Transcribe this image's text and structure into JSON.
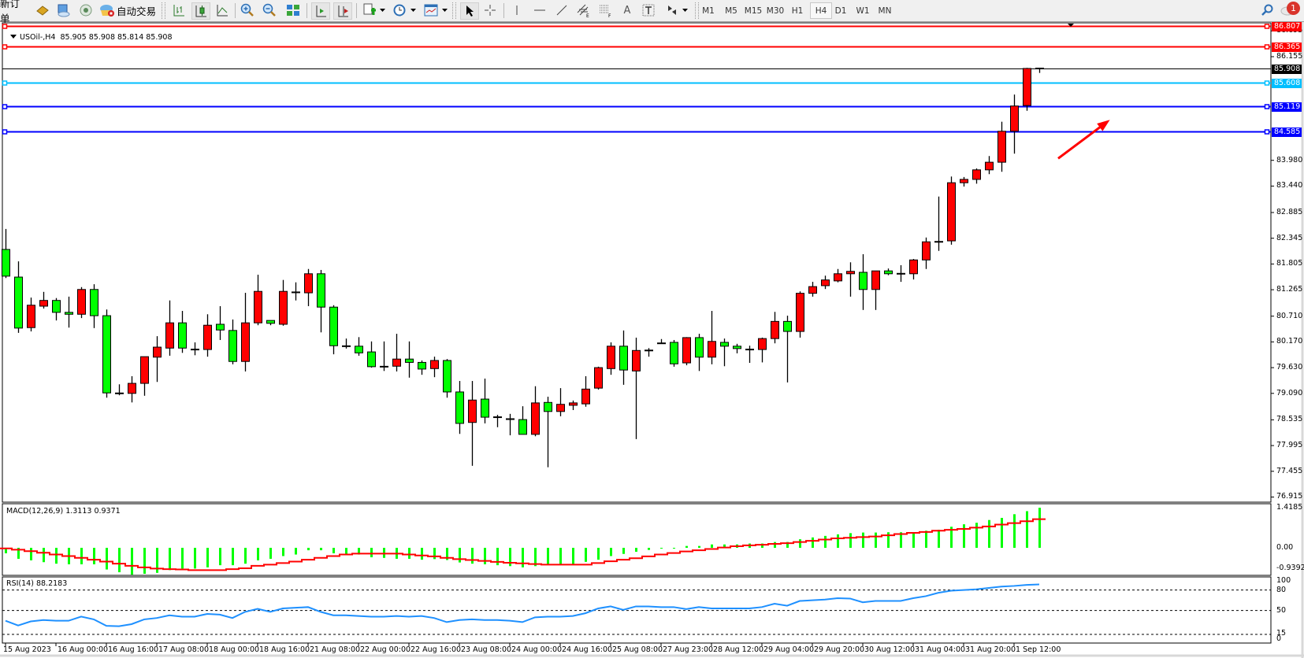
{
  "toolbar": {
    "new_order": "新订单",
    "auto_trading": "自动交易",
    "timeframes": [
      "M1",
      "M5",
      "M15",
      "M30",
      "H1",
      "H4",
      "D1",
      "W1",
      "MN"
    ],
    "active_timeframe": "H4",
    "notification_count": "1"
  },
  "chart": {
    "symbol": "USOil-,H4",
    "ohlc_readout": "85.905 85.908 85.814 85.908"
  },
  "chart_data": {
    "type": "candlestick",
    "timeframe": "H4",
    "up_color": "#ff0000",
    "down_color": "#00ff00",
    "ylim": [
      76.915,
      86.807
    ],
    "price_ticks": [
      "86.695",
      "86.155",
      "83.980",
      "83.440",
      "82.885",
      "82.345",
      "81.805",
      "81.265",
      "80.710",
      "80.170",
      "79.630",
      "79.090",
      "78.535",
      "77.995",
      "77.455",
      "76.915"
    ],
    "time_labels": [
      {
        "bar": 0,
        "label": "15 Aug 2023"
      },
      {
        "bar": 4,
        "label": "16 Aug 00:00"
      },
      {
        "bar": 8,
        "label": "16 Aug 16:00"
      },
      {
        "bar": 12,
        "label": "17 Aug 08:00"
      },
      {
        "bar": 16,
        "label": "18 Aug 00:00"
      },
      {
        "bar": 20,
        "label": "18 Aug 16:00"
      },
      {
        "bar": 24,
        "label": "21 Aug 08:00"
      },
      {
        "bar": 28,
        "label": "22 Aug 00:00"
      },
      {
        "bar": 32,
        "label": "22 Aug 16:00"
      },
      {
        "bar": 36,
        "label": "23 Aug 08:00"
      },
      {
        "bar": 40,
        "label": "24 Aug 00:00"
      },
      {
        "bar": 44,
        "label": "24 Aug 16:00"
      },
      {
        "bar": 48,
        "label": "25 Aug 08:00"
      },
      {
        "bar": 52,
        "label": "27 Aug 23:00"
      },
      {
        "bar": 56,
        "label": "28 Aug 12:00"
      },
      {
        "bar": 60,
        "label": "29 Aug 04:00"
      },
      {
        "bar": 64,
        "label": "29 Aug 20:00"
      },
      {
        "bar": 68,
        "label": "30 Aug 12:00"
      },
      {
        "bar": 72,
        "label": "31 Aug 04:00"
      },
      {
        "bar": 76,
        "label": "31 Aug 20:00"
      },
      {
        "bar": 80,
        "label": "1 Sep 12:00"
      }
    ],
    "ohlc": [
      [
        82.11,
        82.54,
        81.51,
        81.55
      ],
      [
        81.53,
        81.86,
        80.36,
        80.46
      ],
      [
        80.47,
        81.1,
        80.39,
        80.94
      ],
      [
        80.92,
        81.22,
        80.87,
        81.04
      ],
      [
        81.04,
        81.09,
        80.62,
        80.79
      ],
      [
        80.79,
        81.12,
        80.47,
        80.75
      ],
      [
        80.75,
        81.32,
        80.67,
        81.27
      ],
      [
        81.27,
        81.38,
        80.46,
        80.72
      ],
      [
        80.72,
        80.85,
        79.0,
        79.1
      ],
      [
        79.09,
        79.28,
        79.05,
        79.09
      ],
      [
        79.09,
        79.45,
        78.9,
        79.3
      ],
      [
        79.3,
        79.86,
        79.04,
        79.86
      ],
      [
        79.85,
        80.29,
        79.33,
        80.06
      ],
      [
        80.04,
        81.04,
        79.88,
        80.57
      ],
      [
        80.57,
        80.82,
        79.94,
        80.04
      ],
      [
        80.01,
        80.16,
        79.89,
        80.01
      ],
      [
        80.01,
        80.75,
        79.86,
        80.52
      ],
      [
        80.54,
        80.92,
        80.21,
        80.42
      ],
      [
        80.41,
        80.64,
        79.7,
        79.76
      ],
      [
        79.76,
        81.2,
        79.55,
        80.57
      ],
      [
        80.57,
        81.58,
        80.52,
        81.23
      ],
      [
        80.62,
        80.62,
        80.52,
        80.56
      ],
      [
        80.54,
        81.47,
        80.51,
        81.23
      ],
      [
        81.21,
        81.42,
        81.04,
        81.21
      ],
      [
        81.2,
        81.7,
        80.92,
        81.6
      ],
      [
        81.6,
        81.68,
        80.37,
        80.9
      ],
      [
        80.9,
        80.94,
        79.91,
        80.09
      ],
      [
        80.08,
        80.24,
        80.03,
        80.08
      ],
      [
        80.08,
        80.27,
        79.88,
        79.94
      ],
      [
        79.96,
        80.18,
        79.63,
        79.65
      ],
      [
        79.65,
        80.18,
        79.56,
        79.65
      ],
      [
        79.66,
        80.34,
        79.55,
        79.81
      ],
      [
        79.81,
        80.18,
        79.42,
        79.74
      ],
      [
        79.74,
        79.78,
        79.48,
        79.6
      ],
      [
        79.61,
        79.86,
        79.43,
        79.78
      ],
      [
        79.78,
        79.81,
        79.0,
        79.12
      ],
      [
        79.12,
        79.35,
        78.24,
        78.46
      ],
      [
        78.48,
        79.35,
        77.57,
        78.95
      ],
      [
        78.97,
        79.4,
        78.46,
        78.59
      ],
      [
        78.59,
        78.64,
        78.38,
        78.59
      ],
      [
        78.56,
        78.66,
        78.21,
        78.54
      ],
      [
        78.54,
        78.82,
        78.23,
        78.23
      ],
      [
        78.23,
        79.24,
        78.19,
        78.89
      ],
      [
        78.9,
        79.02,
        77.54,
        78.71
      ],
      [
        78.71,
        79.2,
        78.61,
        78.86
      ],
      [
        78.84,
        78.94,
        78.74,
        78.89
      ],
      [
        78.87,
        79.45,
        78.81,
        79.18
      ],
      [
        79.2,
        79.65,
        79.17,
        79.63
      ],
      [
        79.61,
        80.16,
        79.48,
        80.08
      ],
      [
        80.08,
        80.41,
        79.27,
        79.58
      ],
      [
        79.56,
        80.26,
        78.13,
        79.99
      ],
      [
        79.99,
        80.04,
        79.86,
        79.99
      ],
      [
        80.14,
        80.23,
        80.13,
        80.14
      ],
      [
        80.16,
        80.21,
        79.65,
        79.71
      ],
      [
        79.73,
        80.27,
        79.68,
        80.26
      ],
      [
        80.26,
        80.34,
        79.56,
        79.85
      ],
      [
        79.85,
        80.82,
        79.7,
        80.18
      ],
      [
        80.16,
        80.24,
        79.66,
        80.08
      ],
      [
        80.08,
        80.13,
        79.93,
        80.03
      ],
      [
        80.01,
        80.09,
        79.73,
        80.01
      ],
      [
        80.01,
        80.26,
        79.74,
        80.24
      ],
      [
        80.24,
        80.8,
        80.14,
        80.6
      ],
      [
        80.6,
        80.72,
        79.32,
        80.39
      ],
      [
        80.39,
        81.23,
        80.26,
        81.19
      ],
      [
        81.19,
        81.43,
        81.12,
        81.33
      ],
      [
        81.35,
        81.56,
        81.28,
        81.47
      ],
      [
        81.45,
        81.7,
        81.42,
        81.6
      ],
      [
        81.6,
        81.84,
        81.12,
        81.65
      ],
      [
        81.63,
        82.01,
        80.84,
        81.27
      ],
      [
        81.27,
        81.66,
        80.84,
        81.66
      ],
      [
        81.66,
        81.71,
        81.57,
        81.6
      ],
      [
        81.6,
        81.78,
        81.43,
        81.6
      ],
      [
        81.6,
        81.91,
        81.48,
        81.89
      ],
      [
        81.89,
        82.36,
        81.7,
        82.27
      ],
      [
        82.27,
        83.22,
        82.08,
        82.27
      ],
      [
        82.29,
        83.64,
        82.21,
        83.51
      ],
      [
        83.51,
        83.63,
        83.43,
        83.58
      ],
      [
        83.58,
        83.81,
        83.49,
        83.78
      ],
      [
        83.78,
        84.07,
        83.69,
        83.94
      ],
      [
        83.94,
        84.79,
        83.74,
        84.59
      ],
      [
        84.59,
        85.36,
        84.12,
        85.12
      ],
      [
        85.13,
        85.92,
        85.02,
        85.908
      ],
      [
        85.905,
        85.908,
        85.814,
        85.908
      ]
    ],
    "levels": [
      {
        "price": "86.807",
        "color": "#ff0000",
        "text_color": "#ffffff"
      },
      {
        "price": "86.365",
        "color": "#ff0000",
        "text_color": "#ffffff"
      },
      {
        "price": "85.908",
        "color": "#000000",
        "text_color": "#ffffff",
        "kind": "bid"
      },
      {
        "price": "85.608",
        "color": "#00bfff",
        "text_color": "#ffffff"
      },
      {
        "price": "85.119",
        "color": "#0000ff",
        "text_color": "#ffffff"
      },
      {
        "price": "84.585",
        "color": "#0000ff",
        "text_color": "#ffffff"
      }
    ],
    "arrow": {
      "color": "#ff0000",
      "from": {
        "bar": 83.5,
        "price": 84.02
      },
      "to": {
        "bar": 87.6,
        "price": 84.83
      }
    },
    "macd": {
      "label": "MACD(12,26,9)",
      "values_readout": "1.3113 0.9371",
      "ylim": [
        -0.9392,
        1.4185
      ],
      "ticks": [
        "1.4185",
        "0.00",
        "-0.9392"
      ],
      "hist_color": "#00ff00",
      "signal_color": "#ff0000",
      "main": [
        -0.18,
        -0.36,
        -0.41,
        -0.47,
        -0.52,
        -0.54,
        -0.54,
        -0.54,
        -0.71,
        -0.8,
        -0.88,
        -0.85,
        -0.82,
        -0.73,
        -0.68,
        -0.68,
        -0.64,
        -0.57,
        -0.57,
        -0.52,
        -0.41,
        -0.36,
        -0.27,
        -0.22,
        -0.08,
        -0.08,
        -0.18,
        -0.22,
        -0.22,
        -0.31,
        -0.33,
        -0.36,
        -0.36,
        -0.39,
        -0.37,
        -0.4,
        -0.48,
        -0.52,
        -0.54,
        -0.57,
        -0.6,
        -0.64,
        -0.6,
        -0.54,
        -0.54,
        -0.53,
        -0.46,
        -0.39,
        -0.27,
        -0.2,
        -0.13,
        -0.07,
        -0.02,
        -0.02,
        0.06,
        0.06,
        0.11,
        0.11,
        0.11,
        0.14,
        0.14,
        0.19,
        0.19,
        0.28,
        0.34,
        0.39,
        0.44,
        0.48,
        0.5,
        0.5,
        0.51,
        0.51,
        0.51,
        0.56,
        0.59,
        0.69,
        0.77,
        0.82,
        0.91,
        0.98,
        1.1,
        1.2,
        1.3113
      ],
      "signal": [
        -0.02,
        -0.06,
        -0.11,
        -0.16,
        -0.22,
        -0.27,
        -0.33,
        -0.39,
        -0.45,
        -0.52,
        -0.59,
        -0.64,
        -0.68,
        -0.7,
        -0.71,
        -0.73,
        -0.73,
        -0.73,
        -0.7,
        -0.67,
        -0.59,
        -0.55,
        -0.5,
        -0.45,
        -0.39,
        -0.33,
        -0.27,
        -0.22,
        -0.19,
        -0.19,
        -0.19,
        -0.19,
        -0.22,
        -0.25,
        -0.28,
        -0.33,
        -0.37,
        -0.4,
        -0.43,
        -0.46,
        -0.49,
        -0.51,
        -0.53,
        -0.55,
        -0.55,
        -0.55,
        -0.55,
        -0.5,
        -0.44,
        -0.39,
        -0.34,
        -0.28,
        -0.22,
        -0.17,
        -0.12,
        -0.08,
        -0.04,
        0.01,
        0.05,
        0.08,
        0.1,
        0.13,
        0.15,
        0.19,
        0.23,
        0.27,
        0.31,
        0.33,
        0.35,
        0.37,
        0.41,
        0.45,
        0.49,
        0.52,
        0.56,
        0.59,
        0.62,
        0.66,
        0.7,
        0.76,
        0.81,
        0.87,
        0.9371
      ]
    },
    "rsi": {
      "label": "RSI(14)",
      "value_readout": "88.2183",
      "ylim": [
        0,
        100
      ],
      "levels": [
        80,
        50,
        15
      ],
      "ticks": [
        "100",
        "80",
        "50",
        "15",
        "0"
      ],
      "color": "#1e90ff",
      "values": [
        35,
        28,
        34,
        36,
        35,
        35,
        41,
        37,
        27.5,
        27,
        30,
        37,
        39,
        43,
        41,
        41,
        45,
        44,
        39,
        48,
        52.5,
        48,
        53,
        54,
        55,
        48,
        43,
        43,
        42,
        41,
        41,
        42,
        41,
        42,
        39,
        33,
        36,
        37,
        36,
        36,
        35,
        33,
        40,
        41,
        41,
        42,
        46,
        53,
        56,
        51,
        56,
        56,
        55,
        55,
        52,
        55,
        53,
        53,
        53,
        53,
        55,
        60,
        57,
        64,
        65,
        66,
        68,
        67.5,
        62,
        64,
        64,
        64,
        68,
        71,
        76,
        79,
        80,
        81,
        83,
        85,
        86,
        87.5,
        88.2183
      ]
    }
  }
}
